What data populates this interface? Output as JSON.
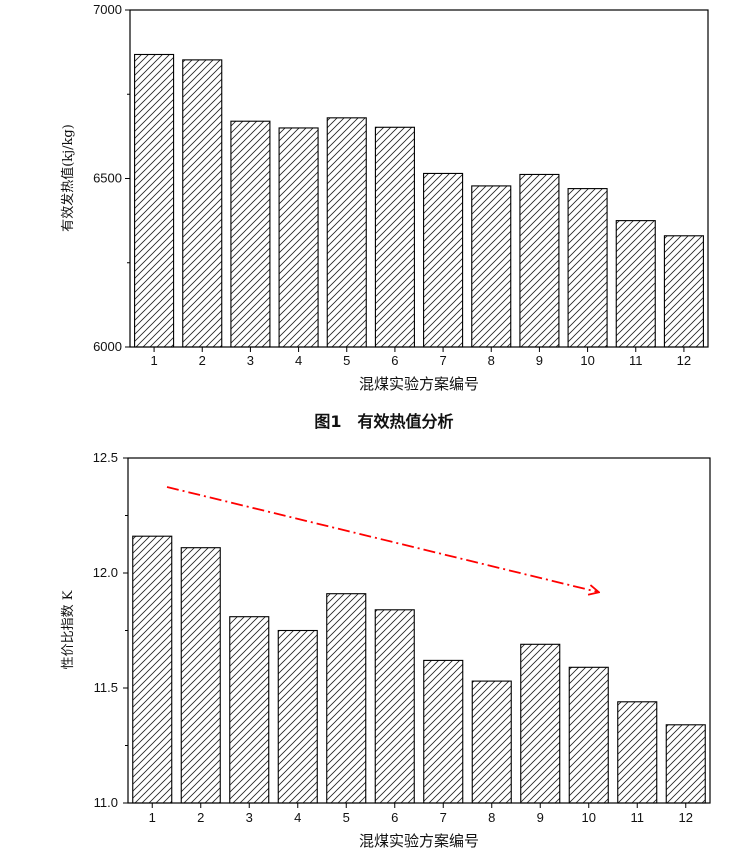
{
  "chart_data": [
    {
      "type": "bar",
      "caption": "图1　有效热值分析",
      "categories": [
        "1",
        "2",
        "3",
        "4",
        "5",
        "6",
        "7",
        "8",
        "9",
        "10",
        "11",
        "12"
      ],
      "values": [
        6868,
        6852,
        6670,
        6650,
        6680,
        6652,
        6515,
        6478,
        6512,
        6470,
        6375,
        6330
      ],
      "xlabel": "混煤实验方案编号",
      "ylabel": "有效发热值(kj/kg)",
      "ylim": [
        6000,
        7000
      ],
      "yticks": [
        "6000",
        "6500",
        "7000"
      ],
      "bar_fill": "diagonal hatch",
      "grid": false
    },
    {
      "type": "bar",
      "categories": [
        "1",
        "2",
        "3",
        "4",
        "5",
        "6",
        "7",
        "8",
        "9",
        "10",
        "11",
        "12"
      ],
      "values": [
        12.16,
        12.11,
        11.81,
        11.75,
        11.91,
        11.84,
        11.62,
        11.53,
        11.69,
        11.59,
        11.44,
        11.34
      ],
      "xlabel": "混煤实验方案编号",
      "ylabel": "性价比指数 K",
      "ylim": [
        11.0,
        12.5
      ],
      "yticks": [
        "11.0",
        "11.5",
        "12.0",
        "12.5"
      ],
      "bar_fill": "diagonal hatch",
      "grid": false,
      "annotations": [
        {
          "type": "dash-dot arrow",
          "color": "#ff0000",
          "direction": "decreasing trend"
        }
      ]
    }
  ]
}
